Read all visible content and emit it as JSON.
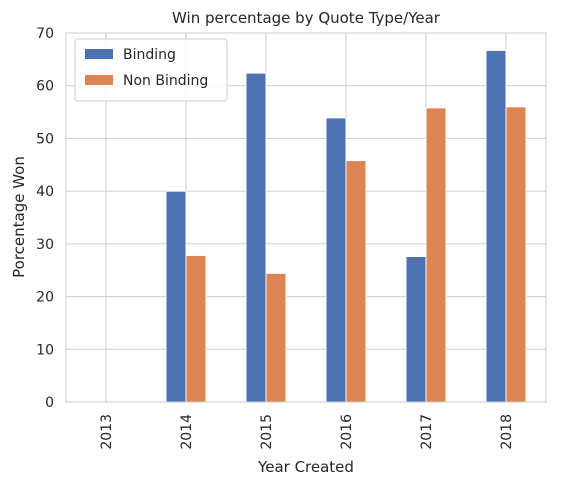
{
  "chart_data": {
    "type": "bar",
    "title": "Win percentage by Quote Type/Year",
    "xlabel": "Year Created",
    "ylabel": "Porcentage Won",
    "categories": [
      "2013",
      "2014",
      "2015",
      "2016",
      "2017",
      "2018"
    ],
    "series": [
      {
        "name": "Binding",
        "color": "#4c72b0",
        "values": [
          0,
          40.0,
          62.4,
          53.9,
          27.6,
          66.7
        ]
      },
      {
        "name": "Non Binding",
        "color": "#dd8452",
        "values": [
          0,
          27.8,
          24.4,
          45.8,
          55.8,
          56.0
        ]
      }
    ],
    "ylim": [
      0,
      70
    ],
    "yticks": [
      0,
      10,
      20,
      30,
      40,
      50,
      60,
      70
    ],
    "grid": true,
    "legend_position": "top-left"
  }
}
